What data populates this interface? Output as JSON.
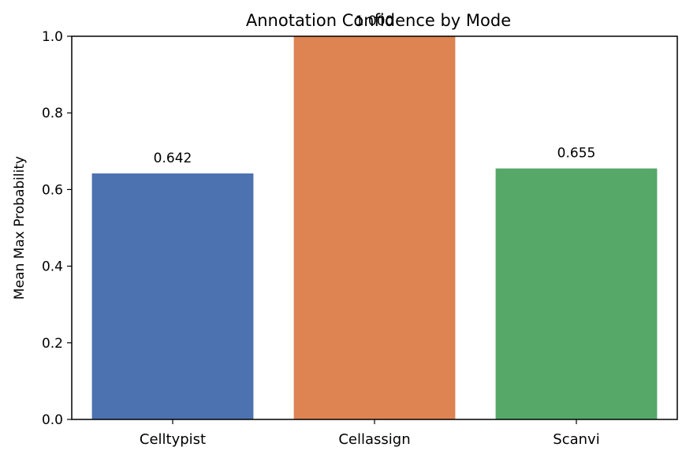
{
  "chart_data": {
    "type": "bar",
    "title": "Annotation Confidence by Mode",
    "xlabel": "",
    "ylabel": "Mean Max Probability",
    "categories": [
      "Celltypist",
      "Cellassign",
      "Scanvi"
    ],
    "values": [
      0.642,
      1.0,
      0.655
    ],
    "value_labels": [
      "0.642",
      "1.000",
      "0.655"
    ],
    "colors": [
      "#4c72b0",
      "#dd8452",
      "#55a868"
    ],
    "ylim": [
      0,
      1
    ],
    "yticks": [
      0.0,
      0.2,
      0.4,
      0.6,
      0.8,
      1.0
    ],
    "ytick_labels": [
      "0.0",
      "0.2",
      "0.4",
      "0.6",
      "0.8",
      "1.0"
    ],
    "grid": false,
    "legend": false
  }
}
